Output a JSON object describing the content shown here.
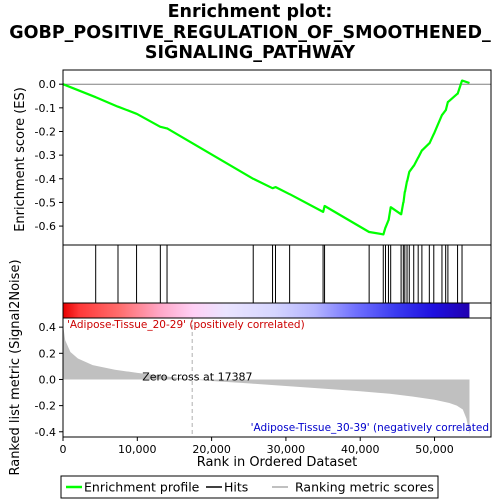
{
  "chart_data": {
    "type": "line",
    "title_lines": [
      "Enrichment plot:",
      "GOBP_POSITIVE_REGULATION_OF_SMOOTHENED_",
      "SIGNALING_PATHWAY"
    ],
    "x_axis": {
      "label": "Rank in Ordered Dataset",
      "range": [
        0,
        57600
      ],
      "ticks": [
        0,
        10000,
        20000,
        30000,
        40000,
        50000
      ],
      "tick_labels": [
        "0",
        "10,000",
        "20,000",
        "30,000",
        "40,000",
        "50,000"
      ]
    },
    "es_panel": {
      "ylabel": "Enrichment score (ES)",
      "ylim": [
        -0.68,
        0.06
      ],
      "ticks": [
        0.0,
        -0.1,
        -0.2,
        -0.3,
        -0.4,
        -0.5,
        -0.6
      ],
      "tick_labels": [
        "0.0",
        "-0.1",
        "-0.2",
        "-0.3",
        "-0.4",
        "-0.5",
        "-0.6"
      ]
    },
    "metric_panel": {
      "ylabel": "Ranked list metric (Signal2Noise)",
      "ylim": [
        -0.44,
        0.47
      ],
      "ticks": [
        0.4,
        0.2,
        0.0,
        -0.2,
        -0.4
      ],
      "tick_labels": [
        "0.4",
        "0.2",
        "0.0",
        "-0.2",
        "-0.4"
      ]
    },
    "colors": {
      "profile": "#00ff00",
      "hits": "#000000",
      "metric": "#c0c0c0",
      "zero_cross": "#b0b0b0"
    },
    "series": [
      {
        "name": "Enrichment profile",
        "x": [
          0,
          4400,
          4420,
          7400,
          7420,
          9900,
          9920,
          13100,
          13120,
          14000,
          14020,
          25600,
          25620,
          28200,
          28220,
          28600,
          28620,
          30500,
          30520,
          35000,
          35020,
          35200,
          35220,
          41200,
          41220,
          43100,
          43120,
          43400,
          43420,
          43800,
          43820,
          44100,
          44120,
          45500,
          45520,
          45800,
          45820,
          46000,
          46020,
          46300,
          46320,
          46600,
          46620,
          47200,
          47220,
          47800,
          47820,
          48300,
          48320,
          49300,
          49320,
          49900,
          49920,
          51000,
          51020,
          51500,
          51520,
          51800,
          51820,
          53100,
          53120,
          53700,
          53720,
          54700
        ],
        "y": [
          0.0,
          -0.055,
          -0.055,
          -0.095,
          -0.095,
          -0.125,
          -0.125,
          -0.18,
          -0.18,
          -0.187,
          -0.187,
          -0.4,
          -0.4,
          -0.44,
          -0.44,
          -0.435,
          -0.435,
          -0.465,
          -0.465,
          -0.54,
          -0.54,
          -0.515,
          -0.515,
          -0.625,
          -0.625,
          -0.635,
          -0.635,
          -0.605,
          -0.605,
          -0.575,
          -0.575,
          -0.52,
          -0.52,
          -0.55,
          -0.55,
          -0.5,
          -0.5,
          -0.455,
          -0.455,
          -0.41,
          -0.41,
          -0.37,
          -0.37,
          -0.345,
          -0.345,
          -0.31,
          -0.31,
          -0.28,
          -0.28,
          -0.25,
          -0.25,
          -0.21,
          -0.21,
          -0.13,
          -0.13,
          -0.11,
          -0.11,
          -0.075,
          -0.075,
          -0.04,
          -0.04,
          0.015,
          0.015,
          0.005
        ]
      }
    ],
    "hits": [
      4400,
      7400,
      9900,
      13100,
      14000,
      25600,
      28200,
      28600,
      30500,
      35000,
      35200,
      41200,
      43100,
      43400,
      43800,
      44100,
      45500,
      45800,
      46000,
      46300,
      46600,
      47200,
      47800,
      48300,
      49300,
      49900,
      51000,
      51500,
      51800,
      53100,
      53700
    ],
    "metric_curve": {
      "x": [
        0,
        300,
        1000,
        2000,
        4000,
        7000,
        10000,
        13000,
        15000,
        17387,
        20000,
        25000,
        30000,
        35000,
        40000,
        44000,
        47000,
        50000,
        52000,
        53000,
        53800,
        54300,
        54700
      ],
      "y": [
        0.42,
        0.3,
        0.21,
        0.16,
        0.11,
        0.075,
        0.05,
        0.03,
        0.015,
        0.0,
        -0.012,
        -0.03,
        -0.05,
        -0.07,
        -0.09,
        -0.11,
        -0.13,
        -0.155,
        -0.18,
        -0.2,
        -0.23,
        -0.3,
        -0.42
      ]
    },
    "zero_cross": {
      "x": 17387,
      "label": "Zero cross at 17387"
    },
    "annotations": {
      "positive": "'Adipose-Tissue_20-29' (positively correlated)",
      "negative": "'Adipose-Tissue_30-39' (negatively correlated"
    },
    "gradient_stops": [
      {
        "offset": 0.0,
        "color": "#e60000"
      },
      {
        "offset": 0.04,
        "color": "#ff3838"
      },
      {
        "offset": 0.14,
        "color": "#ff6e6e"
      },
      {
        "offset": 0.24,
        "color": "#ffa8c8"
      },
      {
        "offset": 0.32,
        "color": "#ffd0f5"
      },
      {
        "offset": 0.4,
        "color": "#eae4ff"
      },
      {
        "offset": 0.52,
        "color": "#d6d6ff"
      },
      {
        "offset": 0.62,
        "color": "#b4b4ff"
      },
      {
        "offset": 0.72,
        "color": "#7070ff"
      },
      {
        "offset": 0.82,
        "color": "#3a3af0"
      },
      {
        "offset": 0.91,
        "color": "#1f10e0"
      },
      {
        "offset": 1.0,
        "color": "#2000b0"
      }
    ],
    "legend": [
      "Enrichment profile",
      "Hits",
      "Ranking metric scores"
    ],
    "grid": false,
    "legend_position": "bottom"
  }
}
